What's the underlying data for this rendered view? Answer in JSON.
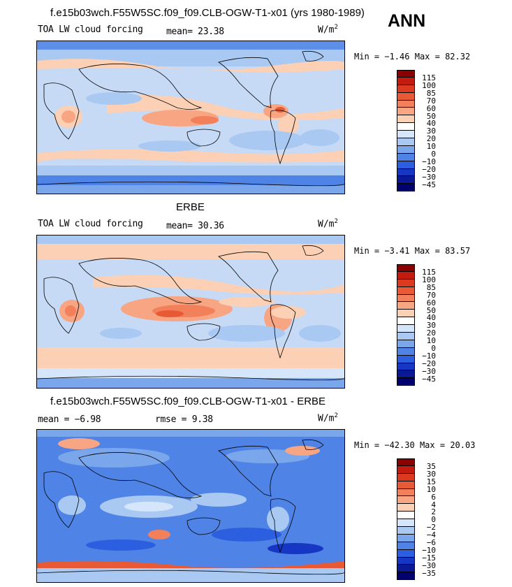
{
  "season_label": "ANN",
  "panels": [
    {
      "title": "f.e15b03wch.F55W5SC.f09_f09.CLB-OGW-T1-x01 (yrs 1980-1989)",
      "field": "TOA LW cloud forcing",
      "mean_label": "mean=",
      "mean_value": "23.38",
      "units_base": "W/m",
      "units_exp": "2",
      "min_label": "Min =",
      "min_value": "−1.46",
      "max_label": "Max =",
      "max_value": "82.32"
    },
    {
      "title": "ERBE",
      "field": "TOA LW cloud forcing",
      "mean_label": "mean=",
      "mean_value": "30.36",
      "units_base": "W/m",
      "units_exp": "2",
      "min_label": "Min =",
      "min_value": "−3.41",
      "max_label": "Max =",
      "max_value": "83.57"
    },
    {
      "title": "f.e15b03wch.F55W5SC.f09_f09.CLB-OGW-T1-x01 - ERBE",
      "mean_label": "mean =",
      "mean_value": "−6.98",
      "rmse_label": "rmse =",
      "rmse_value": "9.38",
      "units_base": "W/m",
      "units_exp": "2",
      "min_label": "Min =",
      "min_value": "−42.30",
      "max_label": "Max =",
      "max_value": "20.03"
    }
  ],
  "colorbars": {
    "field_levels": [
      "115",
      "100",
      "85",
      "70",
      "60",
      "50",
      "40",
      "30",
      "20",
      "10",
      "0",
      "−10",
      "−20",
      "−30",
      "−45"
    ],
    "diff_levels": [
      "35",
      "30",
      "15",
      "10",
      "6",
      "4",
      "2",
      "0",
      "−2",
      "−4",
      "−6",
      "−10",
      "−15",
      "−30",
      "−35"
    ],
    "colors": [
      "#8b0000",
      "#c41a10",
      "#dc3a1e",
      "#e85a36",
      "#f2805a",
      "#f7a583",
      "#fcd0b4",
      "#ffffff",
      "#d6e6fa",
      "#a9c9f3",
      "#7aa6ec",
      "#4f84e6",
      "#2c5fe0",
      "#1637c4",
      "#0a1a96",
      "#00006e"
    ]
  },
  "chart_data": [
    {
      "type": "heatmap",
      "title": "f.e15b03wch.F55W5SC.f09_f09.CLB-OGW-T1-x01 (yrs 1980-1989)",
      "variable": "TOA LW cloud forcing",
      "units": "W/m2",
      "season": "ANN",
      "mean": 23.38,
      "min": -1.46,
      "max": 82.32,
      "contour_levels": [
        -45,
        -30,
        -20,
        -10,
        0,
        10,
        20,
        30,
        40,
        50,
        60,
        70,
        85,
        100,
        115
      ]
    },
    {
      "type": "heatmap",
      "title": "ERBE",
      "variable": "TOA LW cloud forcing",
      "units": "W/m2",
      "season": "ANN",
      "mean": 30.36,
      "min": -3.41,
      "max": 83.57,
      "contour_levels": [
        -45,
        -30,
        -20,
        -10,
        0,
        10,
        20,
        30,
        40,
        50,
        60,
        70,
        85,
        100,
        115
      ]
    },
    {
      "type": "heatmap",
      "title": "f.e15b03wch.F55W5SC.f09_f09.CLB-OGW-T1-x01 - ERBE",
      "units": "W/m2",
      "season": "ANN",
      "mean": -6.98,
      "rmse": 9.38,
      "min": -42.3,
      "max": 20.03,
      "contour_levels": [
        -35,
        -30,
        -15,
        -10,
        -6,
        -4,
        -2,
        0,
        2,
        4,
        6,
        10,
        15,
        30,
        35
      ]
    }
  ]
}
